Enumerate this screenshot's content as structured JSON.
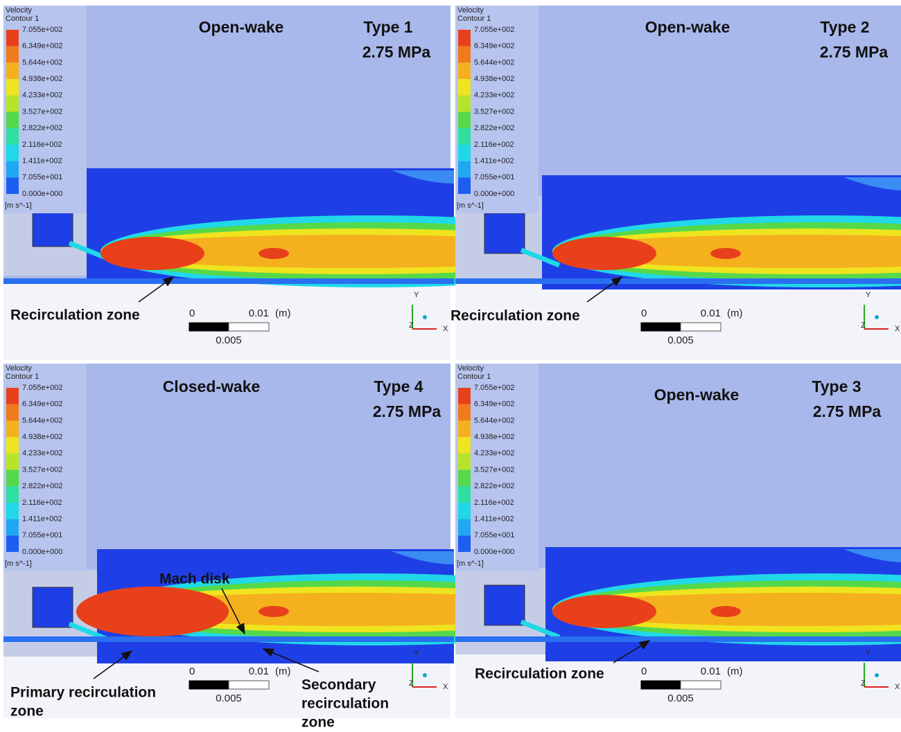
{
  "panels": [
    {
      "legend": {
        "title": "Velocity",
        "subtitle": "Contour 1",
        "levels": [
          "7.055e+002",
          "6.349e+002",
          "5.644e+002",
          "4.938e+002",
          "4.233e+002",
          "3.527e+002",
          "2.822e+002",
          "2.116e+002",
          "1.411e+002",
          "7.055e+001",
          "0.000e+000"
        ],
        "unit": "[m s^-1]"
      },
      "wake": "Open-wake",
      "type": "Type 1",
      "pressure": "2.75 MPa",
      "annotations": [
        {
          "lines": [
            "Recirculation zone"
          ]
        }
      ],
      "scale": {
        "start": "0",
        "end": "0.01",
        "unit": "(m)",
        "mid": "0.005"
      },
      "axes": {
        "y": "Y",
        "x": "X",
        "z": "Z"
      }
    },
    {
      "legend": {
        "title": "Velocity",
        "subtitle": "Contour 1",
        "levels": [
          "7.055e+002",
          "6.349e+002",
          "5.644e+002",
          "4.938e+002",
          "4.233e+002",
          "3.527e+002",
          "2.822e+002",
          "2.116e+002",
          "1.411e+002",
          "7.055e+001",
          "0.000e+000"
        ],
        "unit": "[m s^-1]"
      },
      "wake": "Open-wake",
      "type": "Type 2",
      "pressure": "2.75 MPa",
      "annotations": [
        {
          "lines": [
            "Recirculation zone"
          ]
        }
      ],
      "scale": {
        "start": "0",
        "end": "0.01",
        "unit": "(m)",
        "mid": "0.005"
      },
      "axes": {
        "y": "Y",
        "x": "X",
        "z": "Z"
      }
    },
    {
      "legend": {
        "title": "Velocity",
        "subtitle": "Contour 1",
        "levels": [
          "7.055e+002",
          "6.349e+002",
          "5.644e+002",
          "4.938e+002",
          "4.233e+002",
          "3.527e+002",
          "2.822e+002",
          "2.116e+002",
          "1.411e+002",
          "7.055e+001",
          "0.000e+000"
        ],
        "unit": "[m s^-1]"
      },
      "wake": "Closed-wake",
      "type": "Type 4",
      "pressure": "2.75 MPa",
      "annotations": [
        {
          "lines": [
            "Mach disk"
          ]
        },
        {
          "lines": [
            "Primary recirculation",
            "zone"
          ]
        },
        {
          "lines": [
            "Secondary",
            "recirculation",
            "zone"
          ]
        }
      ],
      "scale": {
        "start": "0",
        "end": "0.01",
        "unit": "(m)",
        "mid": "0.005"
      },
      "axes": {
        "y": "Y",
        "x": "X",
        "z": "Z"
      }
    },
    {
      "legend": {
        "title": "Velocity",
        "subtitle": "Contour 1",
        "levels": [
          "7.055e+002",
          "6.349e+002",
          "5.644e+002",
          "4.938e+002",
          "4.233e+002",
          "3.527e+002",
          "2.822e+002",
          "2.116e+002",
          "1.411e+002",
          "7.055e+001",
          "0.000e+000"
        ],
        "unit": "[m s^-1]"
      },
      "wake": "Open-wake",
      "type": "Type 3",
      "pressure": "2.75  MPa",
      "annotations": [
        {
          "lines": [
            "Recirculation zone"
          ]
        }
      ],
      "scale": {
        "start": "0",
        "end": "0.01",
        "unit": "(m)",
        "mid": "0.005"
      },
      "axes": {
        "y": "Y",
        "x": "X",
        "z": "Z"
      }
    }
  ]
}
